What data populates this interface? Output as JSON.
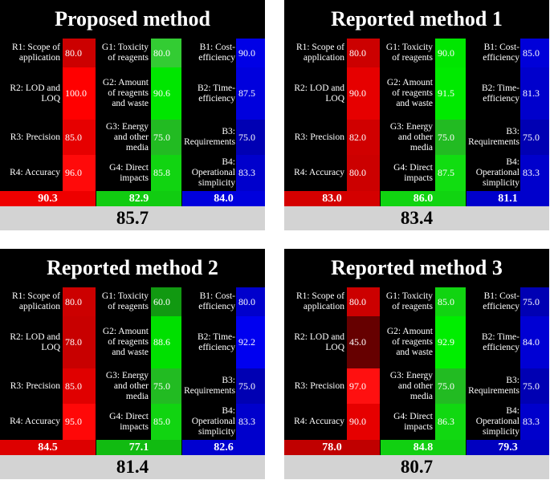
{
  "panels": [
    {
      "title": "Proposed method",
      "red": [
        {
          "label": "R1: Scope of application",
          "value": "80.0",
          "color": "#cc0000"
        },
        {
          "label": "R2: LOD and LOQ",
          "value": "100.0",
          "color": "#ff0000"
        },
        {
          "label": "R3: Precision",
          "value": "85.0",
          "color": "#e60000"
        },
        {
          "label": "R4: Accuracy",
          "value": "96.0",
          "color": "#ff0a0a"
        }
      ],
      "green": [
        {
          "label": "G1: Toxicity of reagents",
          "value": "80.0",
          "color": "#33cc33"
        },
        {
          "label": "G2: Amount of reagents and waste",
          "value": "90.6",
          "color": "#00e600"
        },
        {
          "label": "G3: Energy and other media",
          "value": "75.0",
          "color": "#22bb22"
        },
        {
          "label": "G4: Direct impacts",
          "value": "85.8",
          "color": "#11d411"
        }
      ],
      "blue": [
        {
          "label": "B1: Cost-efficiency",
          "value": "90.0",
          "color": "#0000e6"
        },
        {
          "label": "B2: Time-efficiency",
          "value": "87.5",
          "color": "#0000dd"
        },
        {
          "label": "B3: Requirements",
          "value": "75.0",
          "color": "#0000b3"
        },
        {
          "label": "B4: Operational simplicity",
          "value": "83.3",
          "color": "#0000cc"
        }
      ],
      "sums": {
        "red": "90.3",
        "green": "82.9",
        "blue": "84.0"
      },
      "sum_colors": {
        "red": "#ee0000",
        "green": "#11cc11",
        "blue": "#0000dd"
      },
      "total": "85.7"
    },
    {
      "title": "Reported method 1",
      "red": [
        {
          "label": "R1: Scope of application",
          "value": "80.0",
          "color": "#cc0000"
        },
        {
          "label": "R2: LOD and LOQ",
          "value": "90.0",
          "color": "#e60000"
        },
        {
          "label": "R3: Precision",
          "value": "82.0",
          "color": "#d00000"
        },
        {
          "label": "R4: Accuracy",
          "value": "80.0",
          "color": "#cc0000"
        }
      ],
      "green": [
        {
          "label": "G1: Toxicity of reagents",
          "value": "90.0",
          "color": "#00e600"
        },
        {
          "label": "G2: Amount of reagents and waste",
          "value": "91.5",
          "color": "#00ea00"
        },
        {
          "label": "G3: Energy and other media",
          "value": "75.0",
          "color": "#22bb22"
        },
        {
          "label": "G4: Direct impacts",
          "value": "87.5",
          "color": "#11dd11"
        }
      ],
      "blue": [
        {
          "label": "B1: Cost-efficiency",
          "value": "85.0",
          "color": "#0000d9"
        },
        {
          "label": "B2: Time-efficiency",
          "value": "81.3",
          "color": "#0000cc"
        },
        {
          "label": "B3: Requirements",
          "value": "75.0",
          "color": "#0000b3"
        },
        {
          "label": "B4: Operational simplicity",
          "value": "83.3",
          "color": "#0000cc"
        }
      ],
      "sums": {
        "red": "83.0",
        "green": "86.0",
        "blue": "81.1"
      },
      "sum_colors": {
        "red": "#d40000",
        "green": "#11d411",
        "blue": "#0000cc"
      },
      "total": "83.4"
    },
    {
      "title": "Reported method 2",
      "red": [
        {
          "label": "R1: Scope of application",
          "value": "80.0",
          "color": "#cc0000"
        },
        {
          "label": "R2: LOD and LOQ",
          "value": "78.0",
          "color": "#c80000"
        },
        {
          "label": "R3: Precision",
          "value": "85.0",
          "color": "#e00000"
        },
        {
          "label": "R4: Accuracy",
          "value": "95.0",
          "color": "#ff0808"
        }
      ],
      "green": [
        {
          "label": "G1: Toxicity of reagents",
          "value": "60.0",
          "color": "#119911"
        },
        {
          "label": "G2: Amount of reagents and waste",
          "value": "88.6",
          "color": "#00e000"
        },
        {
          "label": "G3: Energy and other media",
          "value": "75.0",
          "color": "#22bb22"
        },
        {
          "label": "G4: Direct impacts",
          "value": "85.0",
          "color": "#11d411"
        }
      ],
      "blue": [
        {
          "label": "B1: Cost-efficiency",
          "value": "80.0",
          "color": "#0000cc"
        },
        {
          "label": "B2: Time-efficiency",
          "value": "92.2",
          "color": "#0000f0"
        },
        {
          "label": "B3: Requirements",
          "value": "75.0",
          "color": "#0000b3"
        },
        {
          "label": "B4: Operational simplicity",
          "value": "83.3",
          "color": "#0000cc"
        }
      ],
      "sums": {
        "red": "84.5",
        "green": "77.1",
        "blue": "82.6"
      },
      "sum_colors": {
        "red": "#dd0000",
        "green": "#11bb11",
        "blue": "#0000d0"
      },
      "total": "81.4"
    },
    {
      "title": "Reported method 3",
      "red": [
        {
          "label": "R1: Scope of application",
          "value": "80.0",
          "color": "#cc0000"
        },
        {
          "label": "R2: LOD and LOQ",
          "value": "45.0",
          "color": "#660000"
        },
        {
          "label": "R3: Precision",
          "value": "97.0",
          "color": "#ff1010"
        },
        {
          "label": "R4: Accuracy",
          "value": "90.0",
          "color": "#e60000"
        }
      ],
      "green": [
        {
          "label": "G1: Toxicity of reagents",
          "value": "85.0",
          "color": "#11d411"
        },
        {
          "label": "G2: Amount of reagents and waste",
          "value": "92.9",
          "color": "#00ee00"
        },
        {
          "label": "G3: Energy and other media",
          "value": "75.0",
          "color": "#22bb22"
        },
        {
          "label": "G4: Direct impacts",
          "value": "86.3",
          "color": "#11d811"
        }
      ],
      "blue": [
        {
          "label": "B1: Cost-efficiency",
          "value": "75.0",
          "color": "#0000b3"
        },
        {
          "label": "B2: Time-efficiency",
          "value": "84.0",
          "color": "#0000d4"
        },
        {
          "label": "B3: Requirements",
          "value": "75.0",
          "color": "#0000b3"
        },
        {
          "label": "B4: Operational simplicity",
          "value": "83.3",
          "color": "#0000cc"
        }
      ],
      "sums": {
        "red": "78.0",
        "green": "84.8",
        "blue": "79.3"
      },
      "sum_colors": {
        "red": "#c00000",
        "green": "#11d011",
        "blue": "#0000c0"
      },
      "total": "80.7"
    }
  ]
}
